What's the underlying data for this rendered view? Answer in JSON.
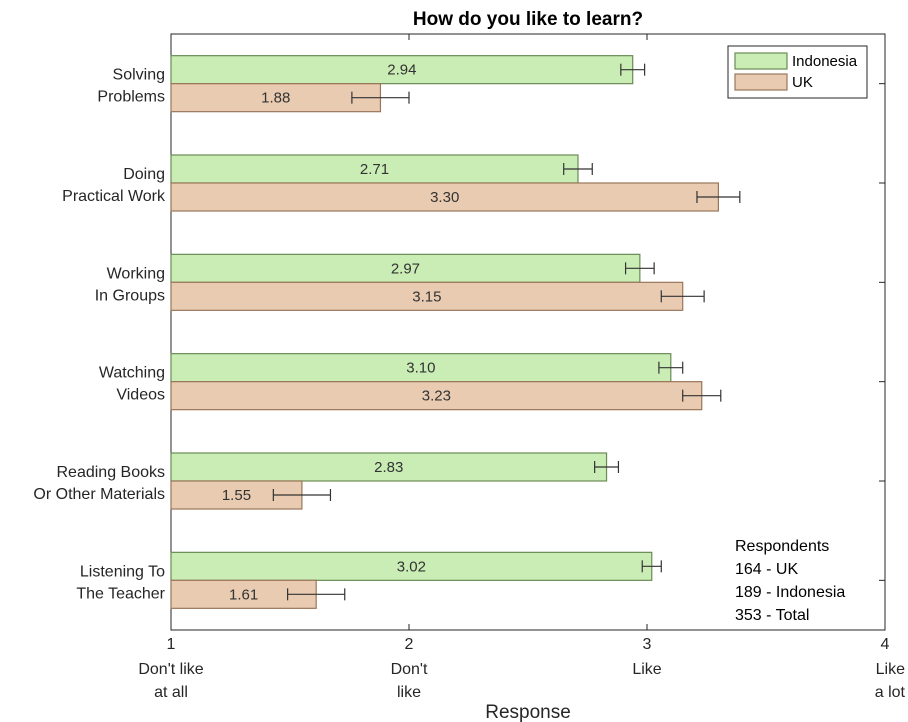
{
  "chart_data": {
    "type": "bar",
    "orientation": "horizontal",
    "title": "How do you like to learn?",
    "xlabel": "Response",
    "xlim": [
      1,
      4
    ],
    "x_ticks": [
      {
        "value": 1,
        "number": "1",
        "lines": [
          "Don't like",
          "at all"
        ]
      },
      {
        "value": 2,
        "number": "2",
        "lines": [
          "Don't",
          "like"
        ]
      },
      {
        "value": 3,
        "number": "3",
        "lines": [
          "Like"
        ]
      },
      {
        "value": 4,
        "number": "4",
        "lines": [
          "Like",
          "a lot"
        ]
      }
    ],
    "categories": [
      {
        "lines": [
          "Solving",
          "Problems"
        ]
      },
      {
        "lines": [
          "Doing",
          "Practical Work"
        ]
      },
      {
        "lines": [
          "Working",
          "In Groups"
        ]
      },
      {
        "lines": [
          "Watching",
          "Videos"
        ]
      },
      {
        "lines": [
          "Reading Books",
          "Or Other Materials"
        ]
      },
      {
        "lines": [
          "Listening To",
          "The Teacher"
        ]
      }
    ],
    "series": [
      {
        "name": "Indonesia",
        "color": "#c9edb5",
        "edge": "#6a8a55",
        "values": [
          2.94,
          2.71,
          2.97,
          3.1,
          2.83,
          3.02
        ],
        "labels": [
          "2.94",
          "2.71",
          "2.97",
          "3.10",
          "2.83",
          "3.02"
        ],
        "errors": [
          0.05,
          0.06,
          0.06,
          0.05,
          0.05,
          0.04
        ]
      },
      {
        "name": "UK",
        "color": "#e8cbb1",
        "edge": "#9a7659",
        "values": [
          1.88,
          3.3,
          3.15,
          3.23,
          1.55,
          1.61
        ],
        "labels": [
          "1.88",
          "3.30",
          "3.15",
          "3.23",
          "1.55",
          "1.61"
        ],
        "errors": [
          0.12,
          0.09,
          0.09,
          0.08,
          0.12,
          0.12
        ]
      }
    ],
    "legend": {
      "location": "top-right"
    },
    "annotation": {
      "lines": [
        "Respondents",
        "164 - UK",
        "189 - Indonesia",
        "353 - Total"
      ],
      "location": "bottom-right"
    }
  }
}
